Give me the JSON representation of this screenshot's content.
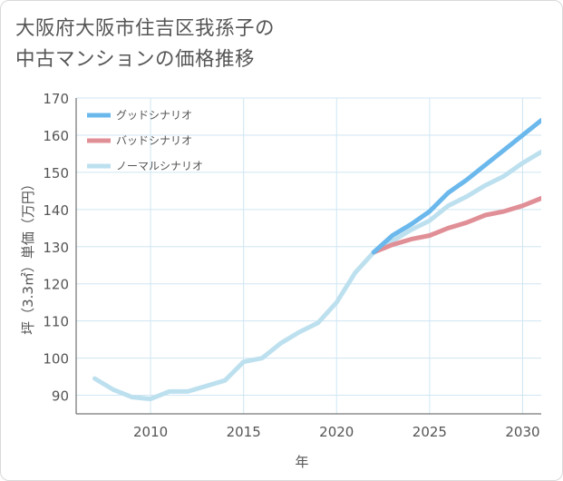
{
  "title": {
    "line1": "大阪府大阪市住吉区我孫子の",
    "line2": "中古マンションの価格推移"
  },
  "colors": {
    "good": "#6bb8ec",
    "bad": "#e08f96",
    "normal": "#bde0ef",
    "grid": "#cfe6f3",
    "axis": "#555555"
  },
  "chart_data": {
    "type": "line",
    "xlabel": "年",
    "ylabel": "坪（3.3㎡）単価（万円）",
    "xlim": [
      2006,
      2031
    ],
    "ylim": [
      85,
      170
    ],
    "xticks": [
      2010,
      2015,
      2020,
      2025,
      2030
    ],
    "yticks": [
      90,
      100,
      110,
      120,
      130,
      140,
      150,
      160,
      170
    ],
    "grid": true,
    "legend_position": "top-left",
    "series": [
      {
        "name": "グッドシナリオ",
        "color": "#6bb8ec",
        "x": [
          2022,
          2023,
          2024,
          2025,
          2026,
          2027,
          2028,
          2029,
          2030,
          2031
        ],
        "y": [
          128.5,
          133,
          136,
          139.5,
          144.5,
          148,
          152,
          156,
          160,
          164
        ]
      },
      {
        "name": "バッドシナリオ",
        "color": "#e08f96",
        "x": [
          2022,
          2023,
          2024,
          2025,
          2026,
          2027,
          2028,
          2029,
          2030,
          2031
        ],
        "y": [
          128.5,
          130.5,
          132,
          133,
          135,
          136.5,
          138.5,
          139.5,
          141,
          143
        ]
      },
      {
        "name": "ノーマルシナリオ",
        "color": "#bde0ef",
        "x": [
          2007,
          2008,
          2009,
          2010,
          2011,
          2012,
          2013,
          2014,
          2015,
          2016,
          2017,
          2018,
          2019,
          2020,
          2021,
          2022,
          2023,
          2024,
          2025,
          2026,
          2027,
          2028,
          2029,
          2030,
          2031
        ],
        "y": [
          94.5,
          91.5,
          89.5,
          89,
          91,
          91,
          92.5,
          94,
          99,
          100,
          104,
          107,
          109.5,
          115,
          123,
          128.5,
          131.5,
          134.5,
          137,
          141,
          143.5,
          146.5,
          149,
          152.5,
          155.5
        ]
      }
    ]
  }
}
